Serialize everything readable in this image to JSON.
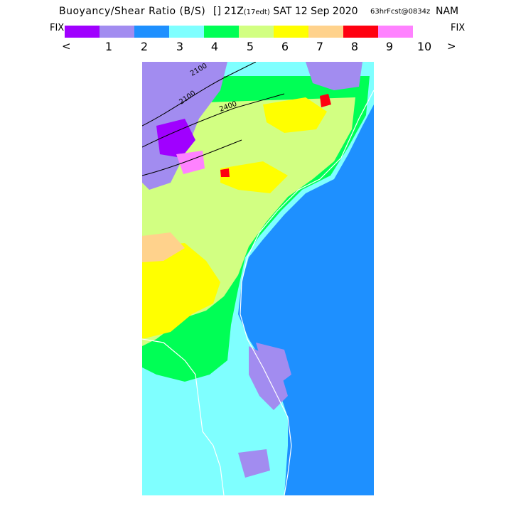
{
  "header": {
    "field": "Buoyancy/Shear Ratio (B/S)",
    "time_prefix": "[] 21Z",
    "time_local": "(17edt)",
    "date": "SAT 12 Sep 2020",
    "forecast": "63hrFcst@0834z",
    "model": "NAM"
  },
  "controls": {
    "fix_left": "FIX",
    "fix_right": "FIX",
    "prev_arrow": "<",
    "next_arrow": ">"
  },
  "legend": {
    "colors": [
      "#a000ff",
      "#a28cf0",
      "#1e90ff",
      "#7fffff",
      "#00ff55",
      "#d2ff82",
      "#ffff00",
      "#ffd28c",
      "#ff0010",
      "#ff82ff"
    ],
    "ticks": [
      "1",
      "2",
      "3",
      "4",
      "5",
      "6",
      "7",
      "8",
      "9",
      "10"
    ]
  },
  "map": {
    "contour_labels": [
      "2100",
      "2100",
      "2400"
    ],
    "palette": {
      "ocean": "#1e90ff",
      "cyan": "#7fffff",
      "green": "#00ff55",
      "lightgreen": "#d2ff82",
      "yellow": "#ffff00",
      "peach": "#ffd28c",
      "red": "#ff0010",
      "lavender": "#a28cf0",
      "purple": "#a000ff",
      "magenta": "#ff82ff",
      "coast": "#ffffff",
      "contour": "#000000"
    }
  }
}
